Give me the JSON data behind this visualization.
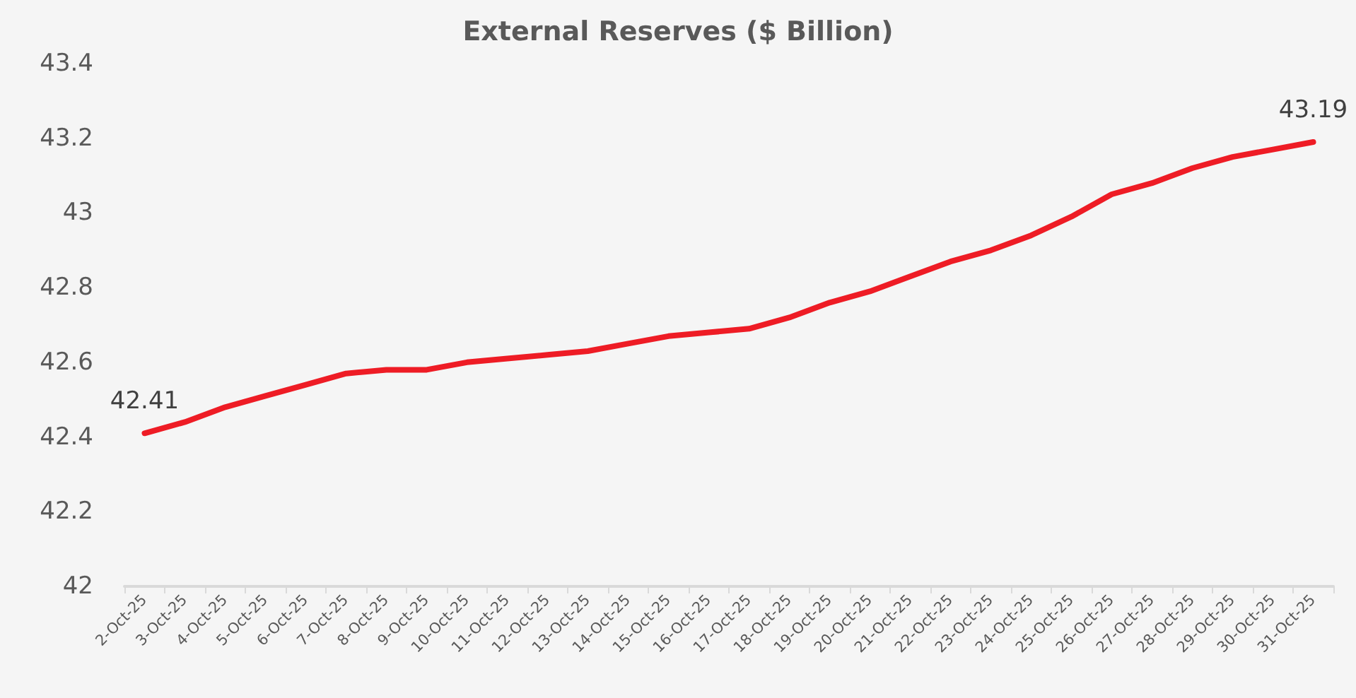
{
  "chart_data": {
    "type": "line",
    "title": "External Reserves ($ Billion)",
    "categories": [
      "2-Oct-25",
      "3-Oct-25",
      "4-Oct-25",
      "5-Oct-25",
      "6-Oct-25",
      "7-Oct-25",
      "8-Oct-25",
      "9-Oct-25",
      "10-Oct-25",
      "11-Oct-25",
      "12-Oct-25",
      "13-Oct-25",
      "14-Oct-25",
      "15-Oct-25",
      "16-Oct-25",
      "17-Oct-25",
      "18-Oct-25",
      "19-Oct-25",
      "20-Oct-25",
      "21-Oct-25",
      "22-Oct-25",
      "23-Oct-25",
      "24-Oct-25",
      "25-Oct-25",
      "26-Oct-25",
      "27-Oct-25",
      "28-Oct-25",
      "29-Oct-25",
      "30-Oct-25",
      "31-Oct-25"
    ],
    "series": [
      {
        "color": "#ee1c25",
        "values": [
          42.41,
          42.44,
          42.48,
          42.51,
          42.54,
          42.57,
          42.58,
          42.58,
          42.6,
          42.61,
          42.62,
          42.63,
          42.65,
          42.67,
          42.68,
          42.69,
          42.72,
          42.76,
          42.79,
          42.83,
          42.87,
          42.9,
          42.94,
          42.99,
          43.05,
          43.08,
          43.12,
          43.15,
          43.17,
          43.19
        ],
        "value_labels": [
          "42.41",
          null,
          null,
          null,
          null,
          null,
          null,
          null,
          null,
          null,
          null,
          null,
          null,
          null,
          null,
          null,
          null,
          null,
          null,
          null,
          null,
          null,
          null,
          null,
          null,
          null,
          null,
          null,
          null,
          "43.19"
        ]
      }
    ],
    "ylim": [
      42,
      43.4
    ],
    "yticks": [
      42,
      42.2,
      42.4,
      42.6,
      42.8,
      43,
      43.2,
      43.4
    ],
    "grid": false,
    "marker": "none",
    "line_style": "solid"
  }
}
